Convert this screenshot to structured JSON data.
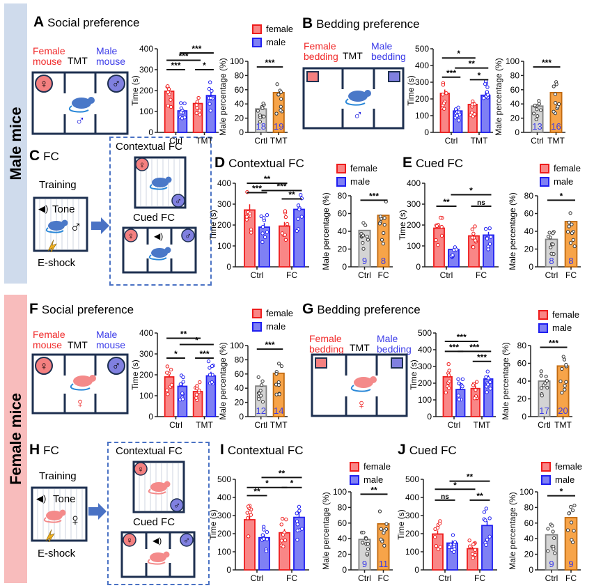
{
  "bands": {
    "male": "Male mice",
    "female": "Female mice"
  },
  "colors": {
    "female_fill": "#f98686",
    "female_edge": "#ee1c1c",
    "male_fill": "#7f80f4",
    "male_edge": "#1f1ff0",
    "ctrl_fill": "#d4d4d4",
    "ctrl_edge": "#808080",
    "tmt_fill": "#f7a449",
    "tmt_edge": "#c06a10",
    "n_label": "#3a3ae8",
    "arena": "#1e3050",
    "mouse_male": "#4a78c8",
    "mouse_female": "#f48a8a",
    "male_band": "#cfdbec",
    "female_band": "#f8bcbc"
  },
  "legend": {
    "female": "female",
    "male": "male"
  },
  "panels": {
    "A": {
      "letter": "A",
      "title": "Social preference",
      "left_label": "Female\nmouse",
      "mid_label": "TMT",
      "right_label": "Male\nmouse",
      "subject": "♂"
    },
    "B": {
      "letter": "B",
      "title": "Bedding preference",
      "left_label": "Female\nbedding",
      "mid_label": "TMT",
      "right_label": "Male\nbedding",
      "subject": "♂"
    },
    "C": {
      "letter": "C",
      "title": "FC",
      "training": "Training",
      "tone": "Tone",
      "eshock": "E-shock",
      "contextual": "Contextual FC",
      "cued": "Cued FC",
      "subject": "♂"
    },
    "D": {
      "letter": "D",
      "title": "Contextual FC"
    },
    "E": {
      "letter": "E",
      "title": "Cued FC"
    },
    "F": {
      "letter": "F",
      "title": "Social preference",
      "left_label": "Female\nmouse",
      "mid_label": "TMT",
      "right_label": "Male\nmouse",
      "subject": "♀"
    },
    "G": {
      "letter": "G",
      "title": "Bedding preference",
      "left_label": "Female\nbedding",
      "mid_label": "TMT",
      "right_label": "Male\nbedding",
      "subject": "♀"
    },
    "H": {
      "letter": "H",
      "title": "FC",
      "training": "Training",
      "tone": "Tone",
      "eshock": "E-shock",
      "contextual": "Contextual FC",
      "cued": "Cued FC",
      "subject": "♀"
    },
    "I": {
      "letter": "I",
      "title": "Contextual FC"
    },
    "J": {
      "letter": "J",
      "title": "Cued FC"
    }
  },
  "chart_data": [
    {
      "id": "A-time",
      "panel": "A",
      "type": "bar",
      "ylabel": "Time (s)",
      "ylim": [
        0,
        400
      ],
      "yticks": [
        0,
        100,
        200,
        300,
        400
      ],
      "categories": [
        "Ctrl",
        "TMT"
      ],
      "series": [
        {
          "name": "female",
          "values": [
            197,
            138
          ]
        },
        {
          "name": "male",
          "values": [
            103,
            176
          ]
        }
      ],
      "sig": [
        {
          "from": [
            0,
            0
          ],
          "to": [
            0,
            1
          ],
          "label": "***",
          "level": 300
        },
        {
          "from": [
            0,
            0
          ],
          "to": [
            1,
            0
          ],
          "label": "***",
          "level": 345
        },
        {
          "from": [
            0,
            1
          ],
          "to": [
            1,
            1
          ],
          "label": "***",
          "level": 380
        },
        {
          "from": [
            1,
            0
          ],
          "to": [
            1,
            1
          ],
          "label": "*",
          "level": 300
        }
      ]
    },
    {
      "id": "A-pct",
      "panel": "A",
      "type": "bar",
      "ylabel": "Male percentage (%)",
      "ylim": [
        0,
        100
      ],
      "yticks": [
        0,
        20,
        40,
        60,
        80,
        100
      ],
      "categories": [
        "Crtl",
        "TMT"
      ],
      "values": [
        33,
        56
      ],
      "n": [
        "18",
        "19"
      ],
      "sig": [
        {
          "from": 0,
          "to": 1,
          "label": "***",
          "level": 92
        }
      ]
    },
    {
      "id": "B-time",
      "panel": "B",
      "type": "bar",
      "ylabel": "Time (s)",
      "ylim": [
        0,
        500
      ],
      "yticks": [
        0,
        100,
        200,
        300,
        400,
        500
      ],
      "categories": [
        "Ctrl",
        "TMT"
      ],
      "series": [
        {
          "name": "female",
          "values": [
            233,
            167
          ]
        },
        {
          "name": "male",
          "values": [
            128,
            222
          ]
        }
      ],
      "sig": [
        {
          "from": [
            0,
            0
          ],
          "to": [
            0,
            1
          ],
          "label": "***",
          "level": 330
        },
        {
          "from": [
            0,
            0
          ],
          "to": [
            1,
            0
          ],
          "label": "*",
          "level": 445
        },
        {
          "from": [
            0,
            1
          ],
          "to": [
            1,
            1
          ],
          "label": "**",
          "level": 385
        },
        {
          "from": [
            1,
            0
          ],
          "to": [
            1,
            1
          ],
          "label": "*",
          "level": 315
        }
      ]
    },
    {
      "id": "B-pct",
      "panel": "B",
      "type": "bar",
      "ylabel": "Male percentage (%)",
      "ylim": [
        0,
        100
      ],
      "yticks": [
        0,
        20,
        40,
        60,
        80,
        100
      ],
      "categories": [
        "Ctrl",
        "TMT"
      ],
      "values": [
        37,
        56
      ],
      "n": [
        "13",
        "16"
      ],
      "sig": [
        {
          "from": 0,
          "to": 1,
          "label": "***",
          "level": 92
        }
      ]
    },
    {
      "id": "D-time",
      "panel": "D",
      "type": "bar",
      "ylabel": "Time (s)",
      "ylim": [
        0,
        400
      ],
      "yticks": [
        0,
        100,
        200,
        300,
        400
      ],
      "categories": [
        "Ctrl",
        "FC"
      ],
      "series": [
        {
          "name": "female",
          "values": [
            272,
            195
          ]
        },
        {
          "name": "male",
          "values": [
            190,
            275
          ]
        }
      ],
      "sig": [
        {
          "from": [
            0,
            0
          ],
          "to": [
            0,
            1
          ],
          "label": "***",
          "level": 355
        },
        {
          "from": [
            0,
            0
          ],
          "to": [
            1,
            0
          ],
          "label": "**",
          "level": 400
        },
        {
          "from": [
            0,
            1
          ],
          "to": [
            1,
            1
          ],
          "label": "***",
          "level": 365
        },
        {
          "from": [
            1,
            0
          ],
          "to": [
            1,
            1
          ],
          "label": "**",
          "level": 325
        }
      ]
    },
    {
      "id": "D-pct",
      "panel": "D",
      "type": "bar",
      "ylabel": "Male percentage (%)",
      "ylim": [
        0,
        80
      ],
      "yticks": [
        0,
        20,
        40,
        60,
        80
      ],
      "categories": [
        "Ctrl",
        "FC"
      ],
      "values": [
        41,
        58
      ],
      "n": [
        "9",
        "8"
      ],
      "sig": [
        {
          "from": 0,
          "to": 1,
          "label": "***",
          "level": 75
        }
      ]
    },
    {
      "id": "E-time",
      "panel": "E",
      "type": "bar",
      "ylabel": "Time (s)",
      "ylim": [
        0,
        400
      ],
      "yticks": [
        0,
        100,
        200,
        300,
        400
      ],
      "categories": [
        "Ctrl",
        "FC"
      ],
      "series": [
        {
          "name": "female",
          "values": [
            185,
            148
          ]
        },
        {
          "name": "male",
          "values": [
            83,
            152
          ]
        }
      ],
      "sig": [
        {
          "from": [
            0,
            0
          ],
          "to": [
            0,
            1
          ],
          "label": "**",
          "level": 290
        },
        {
          "from": [
            0,
            1
          ],
          "to": [
            1,
            1
          ],
          "label": "*",
          "level": 345
        },
        {
          "from": [
            1,
            0
          ],
          "to": [
            1,
            1
          ],
          "label": "ns",
          "level": 290
        }
      ]
    },
    {
      "id": "E-pct",
      "panel": "E",
      "type": "bar",
      "ylabel": "Male percentage (%)",
      "ylim": [
        0,
        80
      ],
      "yticks": [
        0,
        20,
        40,
        60,
        80
      ],
      "categories": [
        "Ctrl",
        "FC"
      ],
      "values": [
        31,
        51
      ],
      "n": [
        "8",
        "8"
      ],
      "sig": [
        {
          "from": 0,
          "to": 1,
          "label": "*",
          "level": 75
        }
      ]
    },
    {
      "id": "F-time",
      "panel": "F",
      "type": "bar",
      "ylabel": "Time (s)",
      "ylim": [
        0,
        400
      ],
      "yticks": [
        0,
        100,
        200,
        300,
        400
      ],
      "categories": [
        "Ctrl",
        "TMT"
      ],
      "series": [
        {
          "name": "female",
          "values": [
            190,
            120
          ]
        },
        {
          "name": "male",
          "values": [
            145,
            195
          ]
        }
      ],
      "sig": [
        {
          "from": [
            0,
            0
          ],
          "to": [
            0,
            1
          ],
          "label": "*",
          "level": 280
        },
        {
          "from": [
            0,
            0
          ],
          "to": [
            1,
            0
          ],
          "label": "**",
          "level": 375
        },
        {
          "from": [
            0,
            1
          ],
          "to": [
            1,
            1
          ],
          "label": "*",
          "level": 345
        },
        {
          "from": [
            1,
            0
          ],
          "to": [
            1,
            1
          ],
          "label": "***",
          "level": 280
        }
      ]
    },
    {
      "id": "F-pct",
      "panel": "F",
      "type": "bar",
      "ylabel": "Male percentage (%)",
      "ylim": [
        0,
        100
      ],
      "yticks": [
        0,
        20,
        40,
        60,
        80,
        100
      ],
      "categories": [
        "Crtl",
        "TMT"
      ],
      "values": [
        43,
        61
      ],
      "n": [
        "12",
        "14"
      ],
      "sig": [
        {
          "from": 0,
          "to": 1,
          "label": "***",
          "level": 95
        }
      ]
    },
    {
      "id": "G-time",
      "panel": "G",
      "type": "bar",
      "ylabel": "Time (s)",
      "ylim": [
        0,
        500
      ],
      "yticks": [
        0,
        100,
        200,
        300,
        400,
        500
      ],
      "categories": [
        "Ctrl",
        "TMT"
      ],
      "series": [
        {
          "name": "female",
          "values": [
            238,
            168
          ]
        },
        {
          "name": "male",
          "values": [
            162,
            225
          ]
        }
      ],
      "sig": [
        {
          "from": [
            0,
            0
          ],
          "to": [
            0,
            1
          ],
          "label": "***",
          "level": 390
        },
        {
          "from": [
            0,
            0
          ],
          "to": [
            1,
            0
          ],
          "label": "***",
          "level": 450
        },
        {
          "from": [
            0,
            1
          ],
          "to": [
            1,
            1
          ],
          "label": "***",
          "level": 390
        },
        {
          "from": [
            1,
            0
          ],
          "to": [
            1,
            1
          ],
          "label": "***",
          "level": 330
        }
      ]
    },
    {
      "id": "G-pct",
      "panel": "G",
      "type": "bar",
      "ylabel": "Male percentage (%)",
      "ylim": [
        0,
        80
      ],
      "yticks": [
        0,
        20,
        40,
        60,
        80
      ],
      "categories": [
        "Crtl",
        "TMT"
      ],
      "values": [
        40,
        57
      ],
      "n": [
        "17",
        "20"
      ],
      "sig": [
        {
          "from": 0,
          "to": 1,
          "label": "***",
          "level": 78
        }
      ]
    },
    {
      "id": "I-time",
      "panel": "I",
      "type": "bar",
      "ylabel": "Time (s)",
      "ylim": [
        0,
        500
      ],
      "yticks": [
        0,
        100,
        200,
        300,
        400,
        500
      ],
      "categories": [
        "Ctrl",
        "FC"
      ],
      "series": [
        {
          "name": "female",
          "values": [
            277,
            205
          ]
        },
        {
          "name": "male",
          "values": [
            178,
            290
          ]
        }
      ],
      "sig": [
        {
          "from": [
            0,
            0
          ],
          "to": [
            0,
            1
          ],
          "label": "**",
          "level": 410
        },
        {
          "from": [
            0,
            0
          ],
          "to": [
            1,
            0
          ],
          "label": "*",
          "level": 455
        },
        {
          "from": [
            0,
            1
          ],
          "to": [
            1,
            1
          ],
          "label": "**",
          "level": 510
        },
        {
          "from": [
            1,
            0
          ],
          "to": [
            1,
            1
          ],
          "label": "*",
          "level": 455
        }
      ]
    },
    {
      "id": "I-pct",
      "panel": "I",
      "type": "bar",
      "ylabel": "Male percentage (%)",
      "ylim": [
        0,
        100
      ],
      "yticks": [
        0,
        20,
        40,
        60,
        80,
        100
      ],
      "categories": [
        "Ctrl",
        "FC"
      ],
      "values": [
        39,
        59
      ],
      "n": [
        "9",
        "11"
      ],
      "sig": [
        {
          "from": 0,
          "to": 1,
          "label": "**",
          "level": 97
        }
      ]
    },
    {
      "id": "J-time",
      "panel": "J",
      "type": "bar",
      "ylabel": "Time (s)",
      "ylim": [
        0,
        500
      ],
      "yticks": [
        0,
        100,
        200,
        300,
        400,
        500
      ],
      "categories": [
        "Ctrl",
        "FC"
      ],
      "series": [
        {
          "name": "female",
          "values": [
            198,
            117
          ]
        },
        {
          "name": "male",
          "values": [
            148,
            245
          ]
        }
      ],
      "sig": [
        {
          "from": [
            0,
            0
          ],
          "to": [
            0,
            1
          ],
          "label": "ns",
          "level": 385
        },
        {
          "from": [
            0,
            0
          ],
          "to": [
            1,
            0
          ],
          "label": "*",
          "level": 445
        },
        {
          "from": [
            0,
            1
          ],
          "to": [
            1,
            1
          ],
          "label": "**",
          "level": 490
        },
        {
          "from": [
            1,
            0
          ],
          "to": [
            1,
            1
          ],
          "label": "**",
          "level": 385
        }
      ]
    },
    {
      "id": "J-pct",
      "panel": "J",
      "type": "bar",
      "ylabel": "Male percentage (%)",
      "ylim": [
        0,
        100
      ],
      "yticks": [
        0,
        20,
        40,
        60,
        80,
        100
      ],
      "categories": [
        "Ctrl",
        "FC"
      ],
      "values": [
        45,
        67
      ],
      "n": [
        "9",
        "9"
      ],
      "sig": [
        {
          "from": 0,
          "to": 1,
          "label": "*",
          "level": 95
        }
      ]
    }
  ]
}
